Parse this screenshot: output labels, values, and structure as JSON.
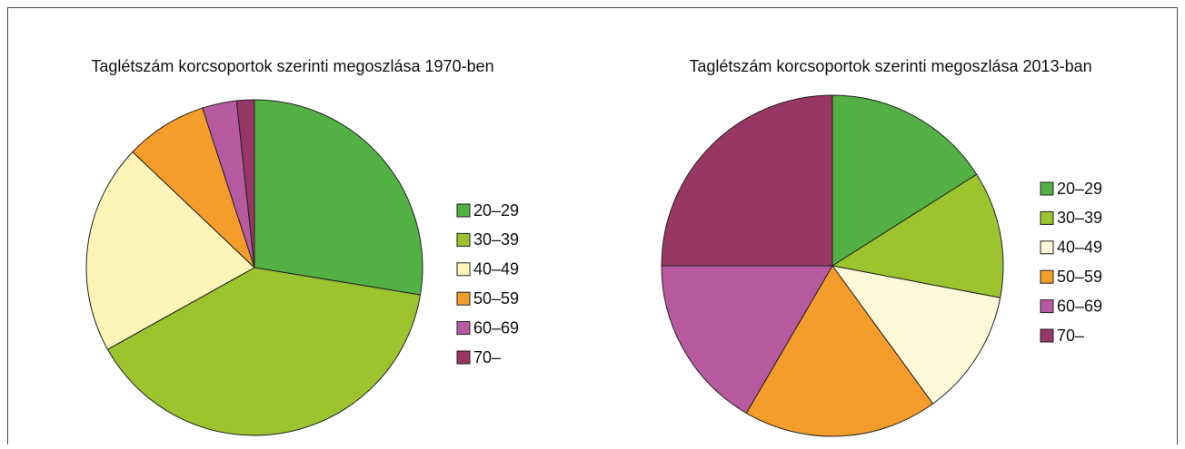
{
  "chart_data": [
    {
      "type": "pie",
      "title": "Taglétszám korcsoportok szerinti megoszlása 1970-ben",
      "categories": [
        "20–29",
        "30–39",
        "40–49",
        "50–59",
        "60–69",
        "70–"
      ],
      "values": [
        27.6,
        39.3,
        20.2,
        7.9,
        3.3,
        1.7
      ],
      "colors": [
        "#52b044",
        "#9cc42e",
        "#fdf4b8",
        "#f59d2a",
        "#b85aa0",
        "#983665"
      ]
    },
    {
      "type": "pie",
      "title": "Taglétszám korcsoportok szerinti megoszlása 2013-ban",
      "categories": [
        "20–29",
        "30–39",
        "40–49",
        "50–59",
        "60–69",
        "70–"
      ],
      "values": [
        16,
        12,
        12,
        18.4,
        16.6,
        25
      ],
      "colors": [
        "#52b044",
        "#9cc42e",
        "#fdf8d8",
        "#f59d2a",
        "#b85aa0",
        "#983665"
      ]
    }
  ]
}
